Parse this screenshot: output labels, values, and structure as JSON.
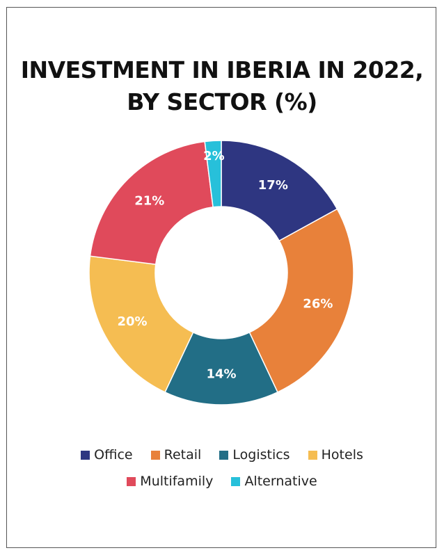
{
  "chart_data": {
    "type": "pie",
    "title": "INVESTMENT IN IBERIA IN 2022, BY SECTOR (%)",
    "title_lines": [
      "INVESTMENT IN IBERIA IN 2022,",
      "BY SECTOR (%)"
    ],
    "donut": true,
    "slices": [
      {
        "label": "Office",
        "value": 17,
        "display": "17%",
        "color": "#2e3681"
      },
      {
        "label": "Retail",
        "value": 26,
        "display": "26%",
        "color": "#e8813a"
      },
      {
        "label": "Logistics",
        "value": 14,
        "display": "14%",
        "color": "#226e86"
      },
      {
        "label": "Hotels",
        "value": 20,
        "display": "20%",
        "color": "#f5bd52"
      },
      {
        "label": "Multifamily",
        "value": 21,
        "display": "21%",
        "color": "#e04a5b"
      },
      {
        "label": "Alternative",
        "value": 2,
        "display": "2%",
        "color": "#27c0da"
      }
    ],
    "legend_position": "bottom"
  }
}
